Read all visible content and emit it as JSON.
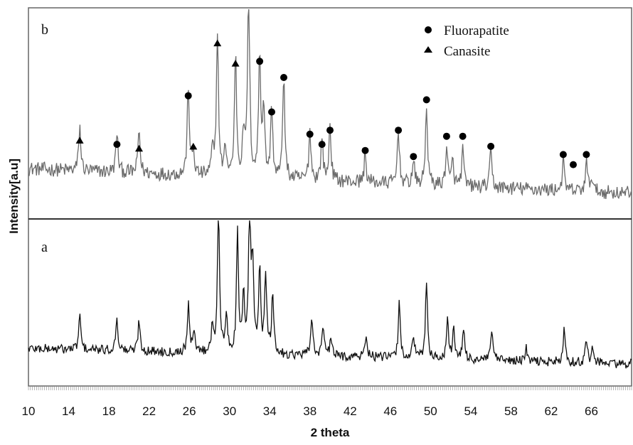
{
  "chart_data": {
    "type": "line",
    "xlabel": "2 theta",
    "ylabel": "Intensity[a.u]",
    "xlim": [
      10,
      70
    ],
    "xticks": [
      10,
      14,
      18,
      22,
      26,
      30,
      34,
      38,
      42,
      46,
      50,
      54,
      58,
      62,
      66
    ],
    "panels": [
      {
        "label": "b",
        "series": {
          "color": "#6b6b6b",
          "baseline": 0.22,
          "noise": 0.035,
          "peaks": [
            [
              15.1,
              0.22
            ],
            [
              18.8,
              0.2
            ],
            [
              21.0,
              0.22
            ],
            [
              25.9,
              0.45
            ],
            [
              26.4,
              0.12
            ],
            [
              28.3,
              0.12
            ],
            [
              28.8,
              0.72
            ],
            [
              29.6,
              0.15
            ],
            [
              30.6,
              0.62
            ],
            [
              31.4,
              0.22
            ],
            [
              31.9,
              0.98
            ],
            [
              33.0,
              0.62
            ],
            [
              33.4,
              0.35
            ],
            [
              34.2,
              0.35
            ],
            [
              35.4,
              0.52
            ],
            [
              38.0,
              0.25
            ],
            [
              39.2,
              0.22
            ],
            [
              40.0,
              0.28
            ],
            [
              43.5,
              0.14
            ],
            [
              46.8,
              0.28
            ],
            [
              48.3,
              0.12
            ],
            [
              49.6,
              0.4
            ],
            [
              51.6,
              0.2
            ],
            [
              52.2,
              0.12
            ],
            [
              53.2,
              0.18
            ],
            [
              56.0,
              0.18
            ],
            [
              63.2,
              0.15
            ],
            [
              65.5,
              0.14
            ],
            [
              66.0,
              0.08
            ]
          ]
        },
        "markers": [
          {
            "phase": "Canasite",
            "x": 15.1,
            "y": 0.36
          },
          {
            "phase": "Fluorapatite",
            "x": 18.8,
            "y": 0.34
          },
          {
            "phase": "Canasite",
            "x": 21.0,
            "y": 0.32
          },
          {
            "phase": "Fluorapatite",
            "x": 25.9,
            "y": 0.58
          },
          {
            "phase": "Canasite",
            "x": 26.4,
            "y": 0.33
          },
          {
            "phase": "Canasite",
            "x": 28.8,
            "y": 0.84
          },
          {
            "phase": "Fluorapatite",
            "x": 31.9,
            "y": 1.1
          },
          {
            "phase": "Canasite",
            "x": 30.6,
            "y": 0.74
          },
          {
            "phase": "Fluorapatite",
            "x": 33.0,
            "y": 0.75
          },
          {
            "phase": "Fluorapatite",
            "x": 34.2,
            "y": 0.5
          },
          {
            "phase": "Fluorapatite",
            "x": 35.4,
            "y": 0.67
          },
          {
            "phase": "Fluorapatite",
            "x": 38.0,
            "y": 0.39
          },
          {
            "phase": "Fluorapatite",
            "x": 39.2,
            "y": 0.34
          },
          {
            "phase": "Fluorapatite",
            "x": 40.0,
            "y": 0.41
          },
          {
            "phase": "Fluorapatite",
            "x": 43.5,
            "y": 0.31
          },
          {
            "phase": "Fluorapatite",
            "x": 46.8,
            "y": 0.41
          },
          {
            "phase": "Fluorapatite",
            "x": 48.3,
            "y": 0.28
          },
          {
            "phase": "Fluorapatite",
            "x": 49.6,
            "y": 0.56
          },
          {
            "phase": "Fluorapatite",
            "x": 51.6,
            "y": 0.38
          },
          {
            "phase": "Fluorapatite",
            "x": 53.2,
            "y": 0.38
          },
          {
            "phase": "Fluorapatite",
            "x": 56.0,
            "y": 0.33
          },
          {
            "phase": "Fluorapatite",
            "x": 63.2,
            "y": 0.29
          },
          {
            "phase": "Fluorapatite",
            "x": 64.2,
            "y": 0.24
          },
          {
            "phase": "Fluorapatite",
            "x": 65.5,
            "y": 0.29
          }
        ]
      },
      {
        "label": "a",
        "series": {
          "color": "#111111",
          "baseline": 0.18,
          "noise": 0.03,
          "peaks": [
            [
              15.1,
              0.22
            ],
            [
              18.8,
              0.22
            ],
            [
              21.0,
              0.2
            ],
            [
              25.9,
              0.3
            ],
            [
              26.5,
              0.15
            ],
            [
              28.3,
              0.18
            ],
            [
              28.9,
              0.95
            ],
            [
              29.7,
              0.25
            ],
            [
              30.8,
              0.75
            ],
            [
              31.4,
              0.35
            ],
            [
              32.0,
              0.92
            ],
            [
              32.3,
              0.55
            ],
            [
              33.0,
              0.55
            ],
            [
              33.6,
              0.5
            ],
            [
              34.3,
              0.38
            ],
            [
              38.2,
              0.25
            ],
            [
              39.3,
              0.2
            ],
            [
              40.1,
              0.12
            ],
            [
              43.6,
              0.15
            ],
            [
              46.9,
              0.35
            ],
            [
              48.3,
              0.15
            ],
            [
              49.6,
              0.5
            ],
            [
              51.7,
              0.25
            ],
            [
              52.3,
              0.2
            ],
            [
              53.3,
              0.2
            ],
            [
              56.1,
              0.2
            ],
            [
              59.5,
              0.08
            ],
            [
              63.3,
              0.2
            ],
            [
              65.5,
              0.15
            ],
            [
              66.1,
              0.1
            ]
          ]
        }
      }
    ],
    "legend": {
      "position": "top-right",
      "entries": [
        {
          "name": "Fluorapatite",
          "marker": "circle"
        },
        {
          "name": "Canasite",
          "marker": "triangle"
        }
      ]
    }
  }
}
